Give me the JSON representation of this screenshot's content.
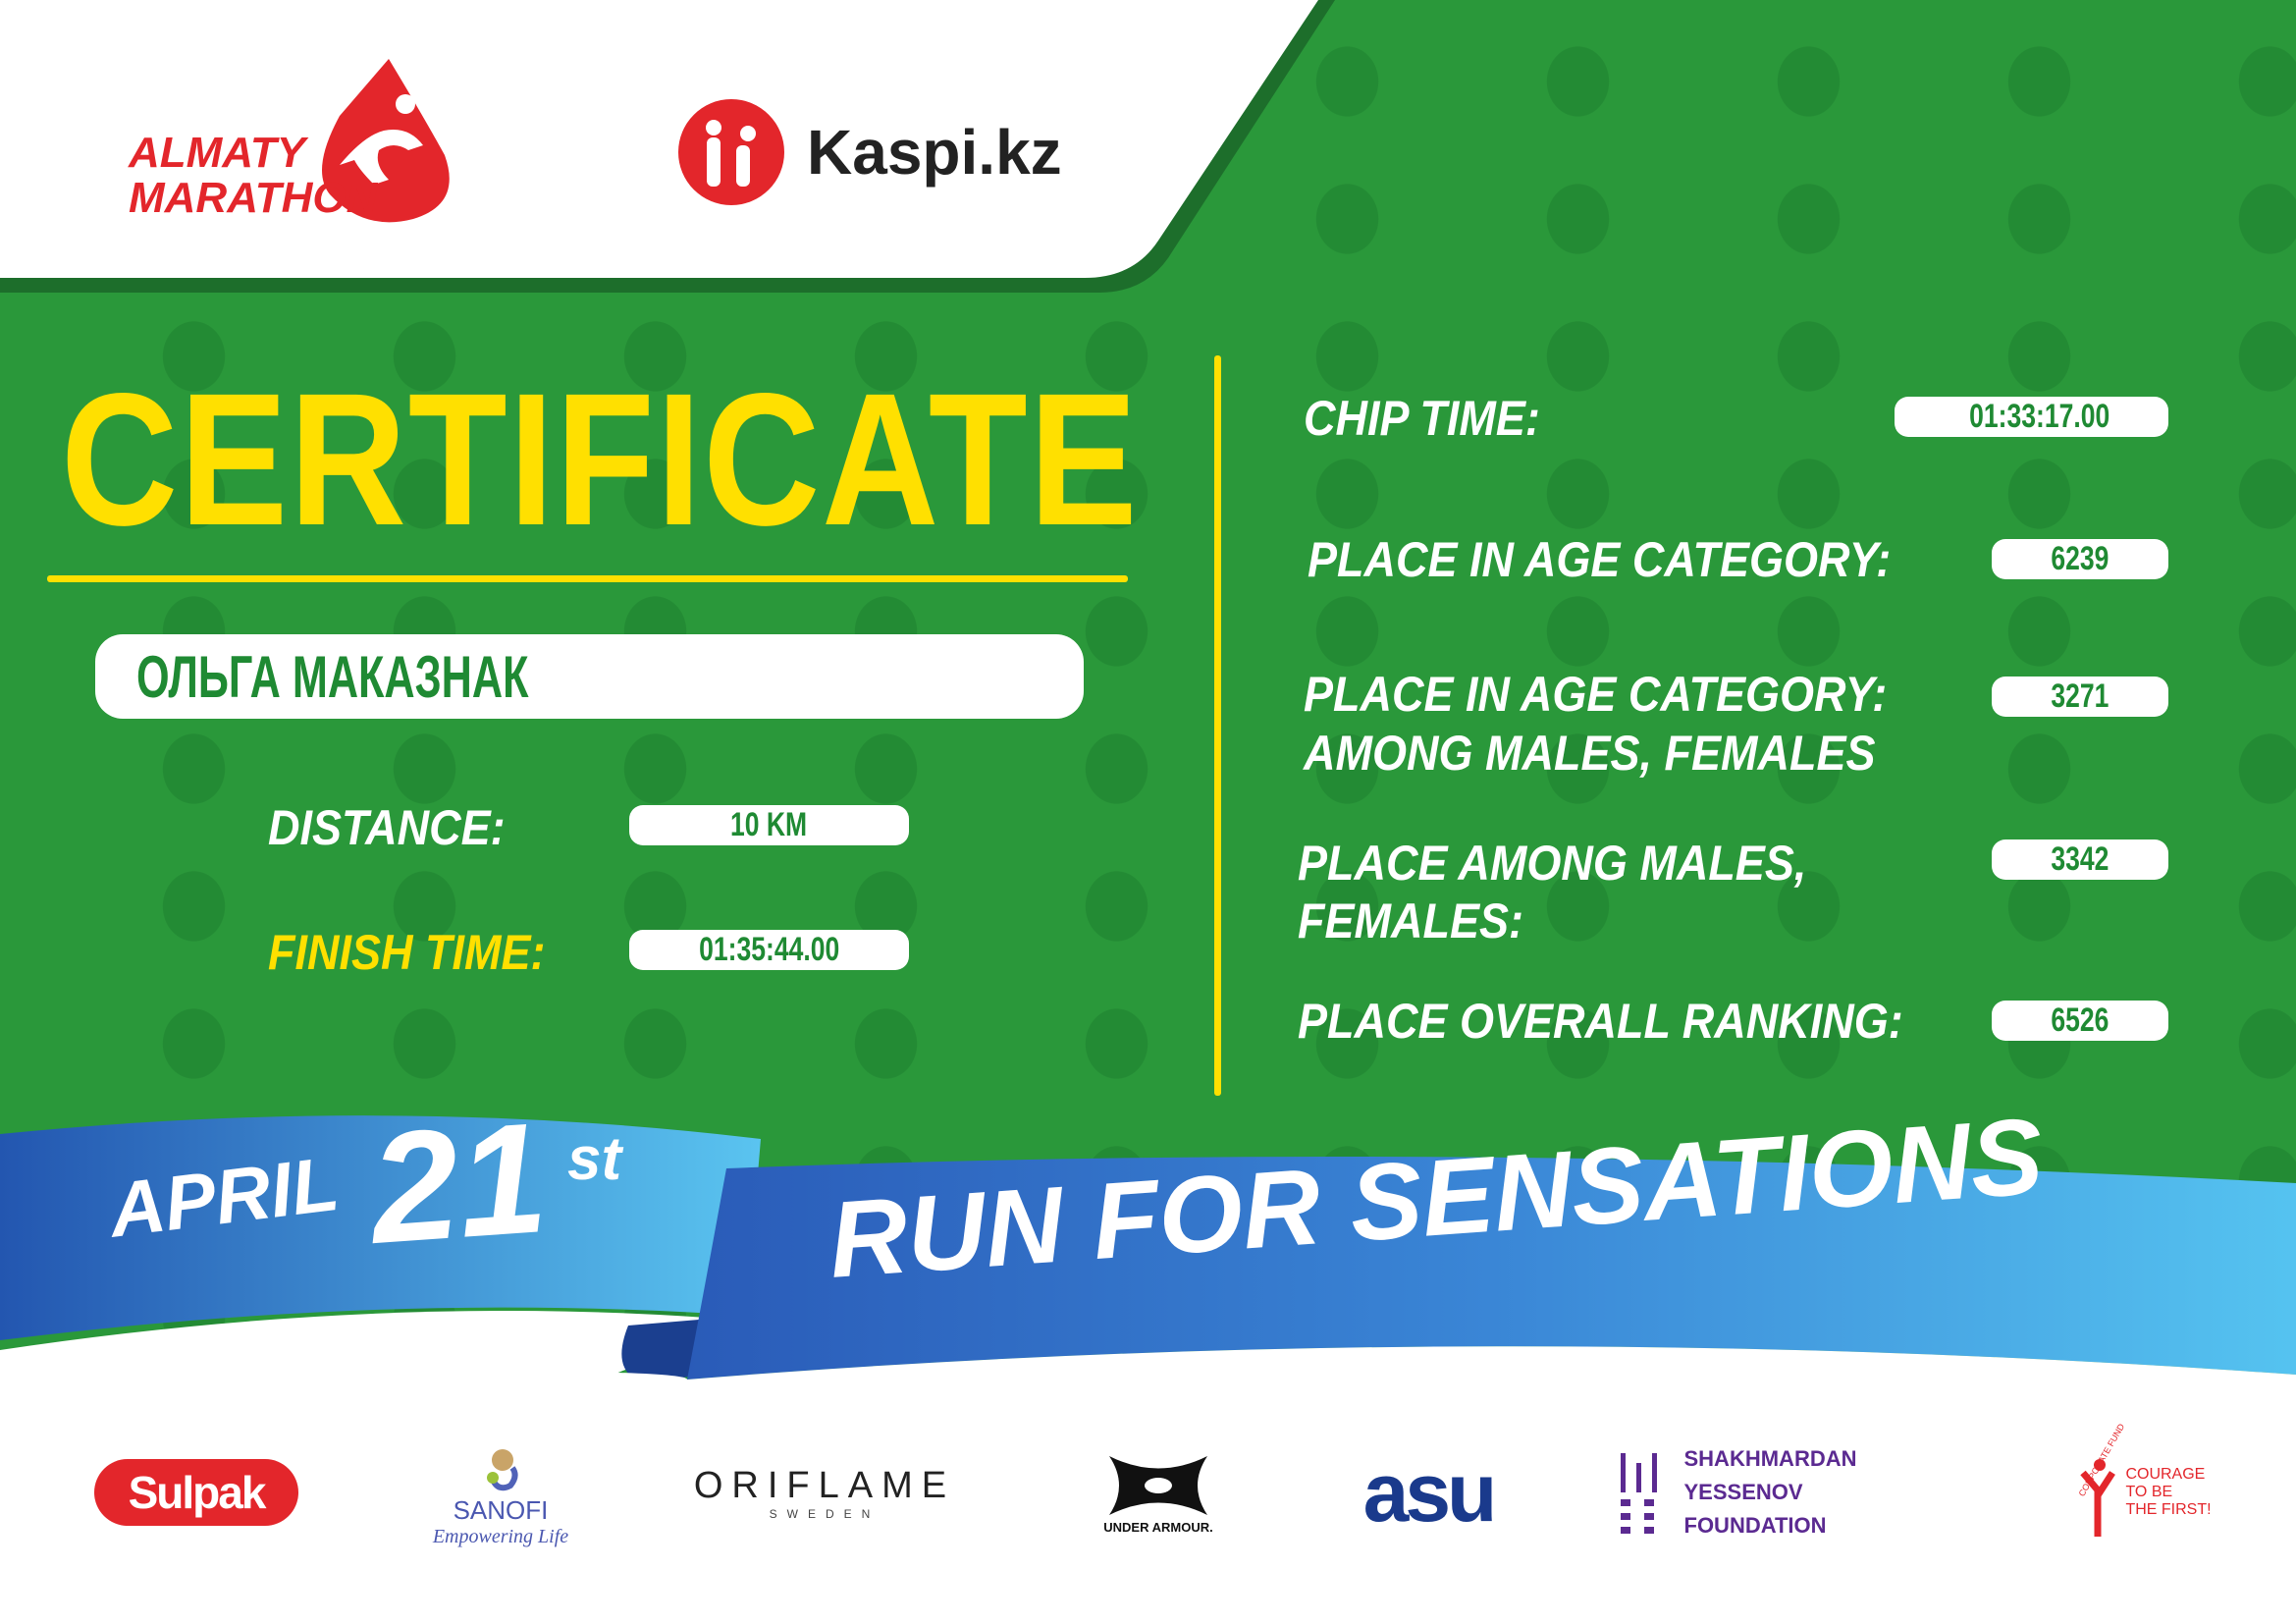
{
  "logos": {
    "almaty_marathon": "ALMATY MARATHON",
    "kaspi": "Kaspi.kz"
  },
  "certificate": {
    "title": "CERTIFICATE",
    "participant_name": "ОЛЬГА МАКАЗНАК",
    "distance_label": "DISTANCE:",
    "distance_value": "10 KM",
    "finish_time_label": "FINISH TIME:",
    "finish_time_value": "01:35:44.00",
    "chip_time_label": "CHIP TIME:",
    "chip_time_value": "01:33:17.00",
    "place_age_label": "PLACE IN AGE CATEGORY:",
    "place_age_value": "6239",
    "place_age_gender_label_1": "PLACE IN AGE CATEGORY:",
    "place_age_gender_label_2": "AMONG MALES, FEMALES",
    "place_age_gender_value": "3271",
    "place_gender_label_1": "PLACE AMONG MALES,",
    "place_gender_label_2": "FEMALES:",
    "place_gender_value": "3342",
    "place_overall_label": "PLACE OVERALL RANKING:",
    "place_overall_value": "6526"
  },
  "banner": {
    "month": "APRIL",
    "day": "21",
    "suffix": "st",
    "slogan": "RUN FOR SENSATIONS"
  },
  "sponsors": {
    "sulpak": "Sulpak",
    "sanofi": "SANOFI",
    "sanofi_tagline": "Empowering Life",
    "oriflame": "ORIFLAME",
    "oriflame_sub": "SWEDEN",
    "under_armour": "UNDER ARMOUR.",
    "asu": "asu",
    "yessenov_1": "SHAKHMARDAN YESSENOV",
    "yessenov_2": "FOUNDATION",
    "courage_arc": "CORPORATE FUND",
    "courage_1": "COURAGE",
    "courage_2": "TO BE",
    "courage_3": "THE FIRST!"
  },
  "colors": {
    "green": "#2a983a",
    "yellow": "#ffe000",
    "red": "#e3262b",
    "blue": "#3a7fd0"
  }
}
